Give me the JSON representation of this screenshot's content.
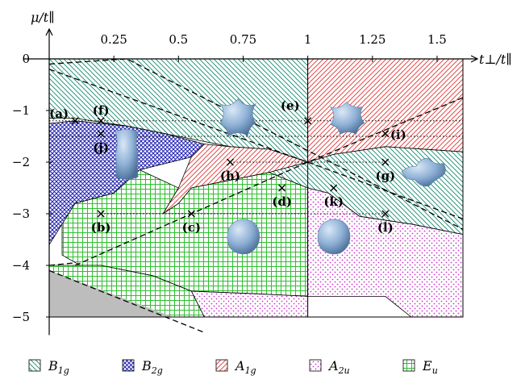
{
  "chart_data": {
    "type": "phase-diagram",
    "xlabel": "t⊥/t∥",
    "ylabel": "μ/t∥",
    "xlim": [
      0,
      1.6
    ],
    "ylim": [
      -5,
      0
    ],
    "x_ticks": [
      {
        "value": 0.25,
        "label": "0.25"
      },
      {
        "value": 0.5,
        "label": "0.5"
      },
      {
        "value": 0.75,
        "label": "0.75"
      },
      {
        "value": 1,
        "label": "1"
      },
      {
        "value": 1.25,
        "label": "1.25"
      },
      {
        "value": 1.5,
        "label": "1.5"
      }
    ],
    "y_ticks": [
      {
        "value": 0,
        "label": "0"
      },
      {
        "value": -1,
        "label": "−1"
      },
      {
        "value": -2,
        "label": "−2"
      },
      {
        "value": -3,
        "label": "−3"
      },
      {
        "value": -4,
        "label": "−4"
      },
      {
        "value": -5,
        "label": "−5"
      }
    ],
    "legend": [
      {
        "key": "B1g",
        "base": "B",
        "sub": "1g",
        "color": "#138a6e",
        "pattern": "diag-down"
      },
      {
        "key": "B2g",
        "base": "B",
        "sub": "2g",
        "color": "#1f1fb0",
        "pattern": "crosshatch"
      },
      {
        "key": "A1g",
        "base": "A",
        "sub": "1g",
        "color": "#e03434",
        "pattern": "diag-up"
      },
      {
        "key": "A2u",
        "base": "A",
        "sub": "2u",
        "color": "#cc33cc",
        "pattern": "dots"
      },
      {
        "key": "Eu",
        "base": "E",
        "sub": "u",
        "color": "#2fbf2f",
        "pattern": "grid"
      }
    ],
    "regions": [
      {
        "phase": "B1g",
        "points": [
          [
            0,
            0
          ],
          [
            1,
            0
          ],
          [
            1,
            -2
          ],
          [
            0.85,
            -1.75
          ],
          [
            0.7,
            -1.7
          ],
          [
            0.5,
            -1.5
          ],
          [
            0.3,
            -1.3
          ],
          [
            0.1,
            -1.15
          ],
          [
            0,
            -1.15
          ]
        ]
      },
      {
        "phase": "A1g",
        "points": [
          [
            1,
            0
          ],
          [
            1.6,
            0
          ],
          [
            1.6,
            -1.8
          ],
          [
            1.3,
            -1.7
          ],
          [
            1.1,
            -1.85
          ],
          [
            1,
            -2
          ]
        ]
      },
      {
        "phase": "B2g",
        "points": [
          [
            0,
            -1.25
          ],
          [
            0.1,
            -1.2
          ],
          [
            0.3,
            -1.3
          ],
          [
            0.45,
            -1.45
          ],
          [
            0.6,
            -1.65
          ],
          [
            0.55,
            -1.9
          ],
          [
            0.35,
            -2.15
          ],
          [
            0.25,
            -2.6
          ],
          [
            0.1,
            -2.8
          ],
          [
            0.05,
            -3.2
          ],
          [
            0,
            -3.6
          ]
        ]
      },
      {
        "phase": "A1g",
        "points": [
          [
            0.6,
            -1.65
          ],
          [
            0.7,
            -1.7
          ],
          [
            0.85,
            -1.75
          ],
          [
            1,
            -2
          ],
          [
            0.85,
            -2.2
          ],
          [
            0.55,
            -2.5
          ],
          [
            0.5,
            -2.8
          ],
          [
            0.44,
            -3
          ],
          [
            0.5,
            -2.5
          ],
          [
            0.55,
            -1.9
          ]
        ]
      },
      {
        "phase": "B1g",
        "points": [
          [
            1,
            -2
          ],
          [
            1.1,
            -1.85
          ],
          [
            1.3,
            -1.7
          ],
          [
            1.6,
            -1.8
          ],
          [
            1.6,
            -3.4
          ],
          [
            1.4,
            -3.2
          ],
          [
            1.2,
            -3.05
          ],
          [
            1.08,
            -2.6
          ],
          [
            1,
            -2.5
          ],
          [
            0.85,
            -2.2
          ]
        ]
      },
      {
        "phase": "Eu",
        "points": [
          [
            0.05,
            -3.2
          ],
          [
            0.1,
            -2.8
          ],
          [
            0.25,
            -2.6
          ],
          [
            0.35,
            -2.15
          ],
          [
            0.5,
            -2.5
          ],
          [
            0.44,
            -3
          ],
          [
            0.5,
            -2.8
          ],
          [
            0.55,
            -2.5
          ],
          [
            0.85,
            -2.2
          ],
          [
            1,
            -2.5
          ],
          [
            1,
            -4.6
          ],
          [
            0.8,
            -4.55
          ],
          [
            0.55,
            -4.5
          ],
          [
            0.4,
            -4.2
          ],
          [
            0.2,
            -4
          ],
          [
            0.12,
            -4
          ],
          [
            0.05,
            -3.8
          ]
        ]
      },
      {
        "phase": "A2u",
        "points": [
          [
            1,
            -2.5
          ],
          [
            1.08,
            -2.6
          ],
          [
            1.2,
            -3.05
          ],
          [
            1.4,
            -3.2
          ],
          [
            1.6,
            -3.4
          ],
          [
            1.6,
            -5
          ],
          [
            1.4,
            -5
          ],
          [
            1.3,
            -4.6
          ],
          [
            1,
            -4.6
          ],
          [
            0.8,
            -4.55
          ],
          [
            0.55,
            -4.5
          ],
          [
            0.4,
            -4.2
          ],
          [
            0.55,
            -4.5
          ],
          [
            0.6,
            -5
          ],
          [
            1,
            -5
          ],
          [
            1,
            -4.6
          ]
        ]
      },
      {
        "phase": "Eu",
        "points": [
          [
            0,
            -4
          ],
          [
            0.12,
            -4
          ],
          [
            0.2,
            -4
          ],
          [
            0.4,
            -4.2
          ],
          [
            0.55,
            -4.5
          ],
          [
            0.6,
            -5
          ],
          [
            0,
            -5
          ]
        ]
      }
    ],
    "gray_region": [
      [
        0,
        -4.1
      ],
      [
        0,
        -5
      ],
      [
        0.48,
        -5
      ]
    ],
    "dashed_lines": [
      [
        [
          0,
          -0.1
        ],
        [
          0.3,
          0
        ],
        [
          1.6,
          -3.3
        ]
      ],
      [
        [
          0,
          -0.2
        ],
        [
          1,
          -2
        ],
        [
          1.6,
          -3.1
        ]
      ],
      [
        [
          0,
          -4.1
        ],
        [
          0.6,
          -5.3
        ]
      ],
      [
        [
          0.1,
          -4
        ],
        [
          1,
          -2
        ],
        [
          1.6,
          -0.75
        ]
      ],
      [
        [
          0,
          -4
        ],
        [
          0.1,
          -3.95
        ]
      ]
    ],
    "dotted_lines": [
      {
        "y": -1.2,
        "x": [
          0,
          1.6
        ]
      },
      {
        "y": -1.5,
        "x": [
          0,
          1.6
        ]
      },
      {
        "y": -2,
        "x": [
          0.7,
          1.3
        ]
      },
      {
        "y": -3,
        "x": [
          0.2,
          1.3
        ]
      }
    ],
    "points": [
      {
        "label": "(a)",
        "x": 0.1,
        "y": -1.2,
        "label_anchor": "left"
      },
      {
        "label": "(f)",
        "x": 0.2,
        "y": -1.2,
        "label_anchor": "above"
      },
      {
        "label": "(j)",
        "x": 0.2,
        "y": -1.45,
        "label_anchor": "below"
      },
      {
        "label": "(e)",
        "x": 1,
        "y": -1.2,
        "label_anchor": "above-left"
      },
      {
        "label": "(i)",
        "x": 1.3,
        "y": -1.45,
        "label_anchor": "right"
      },
      {
        "label": "(h)",
        "x": 0.7,
        "y": -2,
        "label_anchor": "below"
      },
      {
        "label": "(g)",
        "x": 1.3,
        "y": -2,
        "label_anchor": "below"
      },
      {
        "label": "(d)",
        "x": 0.9,
        "y": -2.5,
        "label_anchor": "below"
      },
      {
        "label": "(k)",
        "x": 1.1,
        "y": -2.5,
        "label_anchor": "below"
      },
      {
        "label": "(b)",
        "x": 0.2,
        "y": -3,
        "label_anchor": "below"
      },
      {
        "label": "(c)",
        "x": 0.55,
        "y": -3,
        "label_anchor": "below"
      },
      {
        "label": "(l)",
        "x": 1.3,
        "y": -3,
        "label_anchor": "below"
      }
    ],
    "fermi_surface_insets": [
      {
        "shape": "cube-like",
        "x": 0.73,
        "y": -1.15
      },
      {
        "shape": "cube-like-small",
        "x": 1.15,
        "y": -1.15
      },
      {
        "shape": "cylinder",
        "x": 0.3,
        "y": -1.85
      },
      {
        "shape": "flat-cross",
        "x": 1.45,
        "y": -2.15
      },
      {
        "shape": "sphere",
        "x": 0.75,
        "y": -3.45
      },
      {
        "shape": "sphere",
        "x": 1.1,
        "y": -3.45
      }
    ]
  }
}
